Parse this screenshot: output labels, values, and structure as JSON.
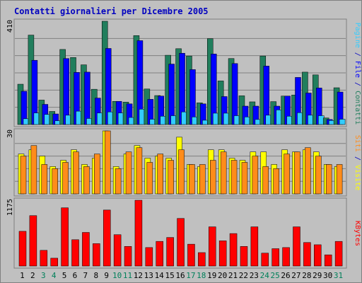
{
  "title": "Contatti giornalieri per Dicembre 2005",
  "colors": {
    "background": "#c0c0c0",
    "panel": "#c0c0c0",
    "title": "#0000c0",
    "contatti": "#217e5d",
    "file": "#0000ff",
    "pagine": "#33ccff",
    "siti": "#ff8c1a",
    "visite": "#ffff00",
    "kbytes": "#ff0000",
    "weekday_label": "#000000",
    "weekend_label": "#00805a"
  },
  "chart_data": [
    {
      "type": "bar",
      "name": "top",
      "ymax_label": "410",
      "ylim": [
        0,
        410
      ],
      "right_labels": [
        {
          "text": "Pagine",
          "color": "#33ccff"
        },
        {
          "text": " / ",
          "color": "#0000c0"
        },
        {
          "text": "File",
          "color": "#0000ff"
        },
        {
          "text": " / ",
          "color": "#0000c0"
        },
        {
          "text": "Contatti",
          "color": "#217e5d"
        }
      ],
      "categories": [
        "1",
        "2",
        "3",
        "4",
        "5",
        "6",
        "7",
        "8",
        "9",
        "10",
        "11",
        "12",
        "13",
        "14",
        "15",
        "16",
        "17",
        "18",
        "19",
        "20",
        "21",
        "22",
        "23",
        "24",
        "25",
        "26",
        "27",
        "28",
        "29",
        "30",
        "31"
      ],
      "series": [
        {
          "name": "Contatti",
          "color": "#217e5d",
          "values": [
            160,
            355,
            97,
            52,
            298,
            266,
            237,
            140,
            410,
            92,
            89,
            353,
            141,
            115,
            275,
            301,
            272,
            86,
            341,
            173,
            262,
            114,
            90,
            272,
            91,
            113,
            117,
            208,
            197,
            26,
            146
          ]
        },
        {
          "name": "File",
          "color": "#0000ff",
          "values": [
            132,
            255,
            80,
            42,
            262,
            207,
            208,
            105,
            302,
            92,
            82,
            333,
            100,
            113,
            240,
            283,
            218,
            82,
            280,
            111,
            242,
            73,
            73,
            232,
            73,
            113,
            187,
            125,
            145,
            20,
            129
          ]
        },
        {
          "name": "Pagine",
          "color": "#33ccff",
          "values": [
            23,
            46,
            40,
            15,
            37,
            53,
            24,
            46,
            50,
            46,
            28,
            61,
            21,
            33,
            35,
            50,
            30,
            17,
            45,
            45,
            35,
            30,
            20,
            37,
            58,
            33,
            47,
            37,
            35,
            16,
            21
          ]
        }
      ]
    },
    {
      "type": "bar",
      "name": "middle",
      "ymax_label": "30",
      "ylim": [
        0,
        30
      ],
      "right_labels": [
        {
          "text": "Siti",
          "color": "#ff8c1a"
        },
        {
          "text": " / ",
          "color": "#0000c0"
        },
        {
          "text": "Visite",
          "color": "#ffff00"
        }
      ],
      "categories": [
        "1",
        "2",
        "3",
        "4",
        "5",
        "6",
        "7",
        "8",
        "9",
        "10",
        "11",
        "12",
        "13",
        "14",
        "15",
        "16",
        "17",
        "18",
        "19",
        "20",
        "21",
        "22",
        "23",
        "24",
        "25",
        "26",
        "27",
        "28",
        "29",
        "30",
        "31"
      ],
      "series": [
        {
          "name": "Visite",
          "color": "#ffff00",
          "values": [
            19,
            21,
            18,
            13,
            16,
            21,
            14,
            17,
            30,
            13,
            19,
            23,
            17,
            18,
            17,
            27,
            14,
            13,
            21,
            21,
            17,
            16,
            20,
            20,
            14,
            21,
            20,
            21,
            20,
            14,
            13
          ]
        },
        {
          "name": "Siti",
          "color": "#ff8c1a",
          "values": [
            18,
            23,
            14,
            12,
            15,
            20,
            13,
            19,
            30,
            12,
            20,
            22,
            15,
            19,
            16,
            21,
            14,
            14,
            16,
            20,
            16,
            15,
            18,
            13,
            12,
            19,
            20,
            22,
            18,
            14,
            14
          ]
        }
      ]
    },
    {
      "type": "bar",
      "name": "bottom",
      "ymax_label": "1175",
      "ylim": [
        0,
        1175
      ],
      "right_labels": [
        {
          "text": "KBytes",
          "color": "#ff0000"
        }
      ],
      "categories": [
        "1",
        "2",
        "3",
        "4",
        "5",
        "6",
        "7",
        "8",
        "9",
        "10",
        "11",
        "12",
        "13",
        "14",
        "15",
        "16",
        "17",
        "18",
        "19",
        "20",
        "21",
        "22",
        "23",
        "24",
        "25",
        "26",
        "27",
        "28",
        "29",
        "30",
        "31"
      ],
      "series": [
        {
          "name": "KBytes",
          "color": "#ff0000",
          "values": [
            620,
            900,
            280,
            140,
            1040,
            470,
            600,
            400,
            1000,
            560,
            350,
            1175,
            330,
            440,
            510,
            850,
            390,
            240,
            700,
            450,
            580,
            350,
            700,
            230,
            310,
            330,
            700,
            420,
            380,
            200,
            440
          ]
        }
      ]
    }
  ],
  "x_labels": [
    "1",
    "2",
    "3",
    "4",
    "5",
    "6",
    "7",
    "8",
    "9",
    "10",
    "11",
    "12",
    "13",
    "14",
    "15",
    "16",
    "17",
    "18",
    "19",
    "20",
    "21",
    "22",
    "23",
    "24",
    "25",
    "26",
    "27",
    "28",
    "29",
    "30",
    "31"
  ],
  "weekend_days": [
    "3",
    "4",
    "10",
    "11",
    "17",
    "18",
    "24",
    "25",
    "31"
  ]
}
